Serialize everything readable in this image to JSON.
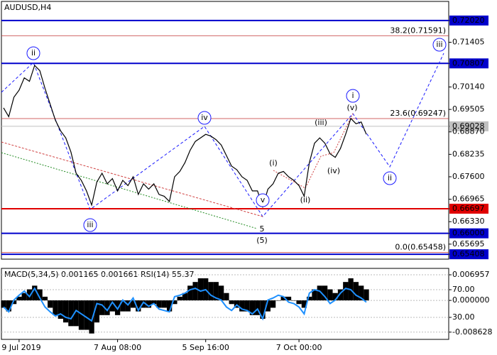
{
  "chart_data": [
    {
      "type": "line",
      "title": "AUDUSD,H4",
      "categories": [
        null,
        null,
        null,
        "9 Jul 2019",
        null,
        null,
        null,
        null,
        null,
        null,
        null,
        null,
        null,
        null,
        null,
        null,
        null,
        null,
        null,
        null,
        null,
        null,
        "7 Aug 08:00",
        null,
        null,
        null,
        null,
        null,
        null,
        null,
        null,
        null,
        null,
        null,
        null,
        null,
        null,
        null,
        null,
        "5 Sep 16:00",
        null,
        null,
        null,
        null,
        null,
        null,
        null,
        null,
        null,
        null,
        null,
        null,
        null,
        null,
        null,
        null,
        null,
        "7 Oct 00:00",
        null,
        null,
        null,
        null,
        null,
        null,
        null,
        null,
        null,
        null,
        null,
        null,
        null
      ],
      "values": [
        0.6955,
        0.693,
        0.6985,
        0.7005,
        0.704,
        0.703,
        0.7075,
        0.706,
        0.701,
        0.6965,
        0.692,
        0.689,
        0.687,
        0.683,
        0.677,
        0.675,
        0.672,
        0.668,
        0.6745,
        0.677,
        0.674,
        0.6755,
        0.672,
        0.675,
        0.6735,
        0.676,
        0.671,
        0.674,
        0.6725,
        0.674,
        0.671,
        0.6705,
        0.669,
        0.676,
        0.6775,
        0.68,
        0.6835,
        0.686,
        0.687,
        0.688,
        0.6875,
        0.6865,
        0.685,
        0.682,
        0.679,
        0.678,
        0.676,
        0.675,
        0.672,
        0.672,
        0.6675,
        0.6725,
        0.674,
        0.677,
        0.6775,
        0.676,
        0.675,
        0.6735,
        0.6705,
        0.68,
        0.6855,
        0.687,
        0.6855,
        0.6825,
        0.6815,
        0.684,
        0.688,
        0.6925,
        0.691,
        0.6915,
        0.688
      ],
      "color": "#000000",
      "ylim": [
        0.6527,
        0.7256
      ],
      "yticks": [
        {
          "value": 0.7202,
          "label": "0.72020"
        },
        0.71405,
        0.70807,
        {
          "value": 0.7014,
          "label": "0.70140"
        },
        0.69505,
        0.69028,
        {
          "value": 0.6887,
          "label": "0.68870"
        },
        0.68235,
        {
          "value": 0.676,
          "label": "0.67600"
        },
        0.66965,
        0.66697,
        {
          "value": 0.6633,
          "label": "0.66330"
        },
        {
          "value": 0.66,
          "label": "0.66000"
        },
        0.65695,
        0.65408
      ],
      "levels": [
        {
          "value": 0.7202,
          "color": "#0000cc"
        },
        {
          "value": 0.70807,
          "color": "#0000cc"
        },
        {
          "value": 0.69028,
          "color": "#c0c0c0"
        },
        {
          "value": 0.66697,
          "color": "#e00000"
        },
        {
          "value": 0.66,
          "color": "#0000cc"
        },
        {
          "value": 0.65408,
          "color": "#0000cc"
        }
      ],
      "fib_levels": [
        {
          "value": 0.71591,
          "label": "38.2(0.71591)"
        },
        {
          "value": 0.69247,
          "label": "23.6(0.69247)"
        },
        {
          "value": 0.65458,
          "label": "0.0(0.65458)"
        }
      ],
      "wave_labels": [
        {
          "text": "ii",
          "color": "#1a1aff"
        },
        {
          "text": "iii",
          "color": "#1a1aff"
        },
        {
          "text": "iv",
          "color": "#1a1aff"
        },
        {
          "text": "v",
          "color": "#1a1aff"
        },
        {
          "text": "i",
          "color": "#1a1aff"
        },
        {
          "text": "ii",
          "color": "#1a1aff"
        },
        {
          "text": "iii",
          "color": "#1a1aff"
        },
        {
          "text": "(i)",
          "color": "#e00000"
        },
        {
          "text": "(ii)",
          "color": "#e00000"
        },
        {
          "text": "(iii)",
          "color": "#e00000"
        },
        {
          "text": "(iv)",
          "color": "#e00000"
        },
        {
          "text": "(v)",
          "color": "#e00000"
        },
        {
          "text": "5",
          "color": "#e00000"
        },
        {
          "text": "(5)",
          "color": "#228b22"
        }
      ]
    },
    {
      "type": "indicator",
      "title": "MACD(5,34,5) 0.001165 0.001661 RSI(14) 55.37",
      "series": [
        {
          "type": "bar",
          "color": "#000000",
          "values": [
            -0.002,
            -0.003,
            -0.001,
            0.001,
            0.002,
            0.003,
            0.004,
            0.003,
            0.001,
            -0.002,
            -0.004,
            -0.005,
            -0.006,
            -0.007,
            -0.007,
            -0.008,
            -0.008,
            -0.009,
            -0.006,
            -0.004,
            -0.004,
            -0.003,
            -0.004,
            -0.003,
            -0.003,
            -0.002,
            -0.003,
            -0.002,
            -0.002,
            -0.001,
            -0.002,
            -0.002,
            -0.003,
            -0.001,
            0.001,
            0.002,
            0.004,
            0.005,
            0.006,
            0.006,
            0.005,
            0.005,
            0.004,
            0.002,
            -0.001,
            -0.002,
            -0.003,
            -0.003,
            -0.004,
            -0.004,
            -0.005,
            -0.003,
            -0.002,
            0.0,
            0.001,
            0.001,
            0.0,
            -0.001,
            -0.002,
            0.001,
            0.003,
            0.004,
            0.004,
            0.003,
            0.002,
            0.003,
            0.005,
            0.006,
            0.005,
            0.004,
            0.003
          ]
        },
        {
          "type": "line",
          "color": "#1e90ff",
          "axis": "y2",
          "values": [
            45,
            38,
            55,
            62,
            68,
            60,
            72,
            58,
            45,
            38,
            32,
            35,
            30,
            28,
            40,
            35,
            30,
            25,
            50,
            48,
            40,
            52,
            42,
            55,
            48,
            58,
            40,
            52,
            46,
            50,
            42,
            40,
            38,
            60,
            62,
            65,
            70,
            72,
            68,
            70,
            62,
            58,
            55,
            45,
            40,
            48,
            42,
            40,
            35,
            42,
            28,
            55,
            58,
            62,
            60,
            52,
            50,
            45,
            35,
            65,
            70,
            68,
            60,
            50,
            55,
            65,
            72,
            70,
            62,
            58,
            52
          ]
        }
      ],
      "ylim": [
        -0.0106,
        0.0087
      ],
      "yticks": [
        0.006957,
        {
          "value": 0,
          "label": "0.000000"
        },
        -0.008628
      ],
      "y2lim": [
        -1.8,
        100.8
      ],
      "y2ticks": [
        {
          "value": 70,
          "label": "70.00"
        },
        {
          "value": 30,
          "label": "30.00"
        }
      ]
    }
  ]
}
